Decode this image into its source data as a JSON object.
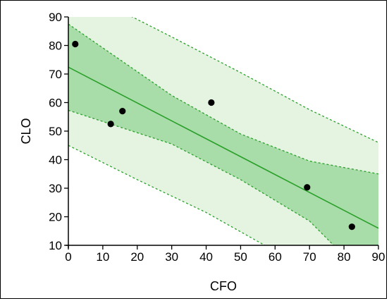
{
  "chart_data": {
    "type": "scatter",
    "title": "",
    "xlabel": "CFO",
    "ylabel": "CLO",
    "xlim": [
      0,
      90
    ],
    "ylim": [
      10,
      90
    ],
    "xticks": [
      0,
      10,
      20,
      30,
      40,
      50,
      60,
      70,
      80,
      90
    ],
    "yticks": [
      10,
      20,
      30,
      40,
      50,
      60,
      70,
      80,
      90
    ],
    "grid": false,
    "points": [
      {
        "x": 2,
        "y": 80.5
      },
      {
        "x": 12.3,
        "y": 52.5
      },
      {
        "x": 15.7,
        "y": 57
      },
      {
        "x": 41.5,
        "y": 60
      },
      {
        "x": 69.3,
        "y": 30.3
      },
      {
        "x": 82.3,
        "y": 16.5
      }
    ],
    "fit_line": {
      "intercept": 72.4,
      "slope": -0.627
    },
    "confidence_band": {
      "lower": [
        [
          0,
          57.3
        ],
        [
          30,
          45.5
        ],
        [
          50,
          33
        ],
        [
          70,
          18.5
        ],
        [
          77,
          10
        ]
      ],
      "upper": [
        [
          0,
          87.5
        ],
        [
          30,
          62.5
        ],
        [
          50,
          49
        ],
        [
          70,
          39.5
        ],
        [
          90,
          35
        ]
      ]
    },
    "prediction_band": {
      "lower": [
        [
          0,
          45
        ],
        [
          20,
          33
        ],
        [
          40,
          21.5
        ],
        [
          57,
          10
        ]
      ],
      "upper": [
        [
          0,
          99.2
        ],
        [
          14,
          92.8
        ],
        [
          30,
          83
        ],
        [
          50,
          70.5
        ],
        [
          70,
          57.5
        ],
        [
          90,
          46
        ]
      ]
    },
    "colors": {
      "fit_line": "#2aa02a",
      "band_dash": "#2aa02a",
      "confidence_fill": "#a8dca8",
      "prediction_fill": "#e4f4e1",
      "points": "#000000"
    }
  }
}
